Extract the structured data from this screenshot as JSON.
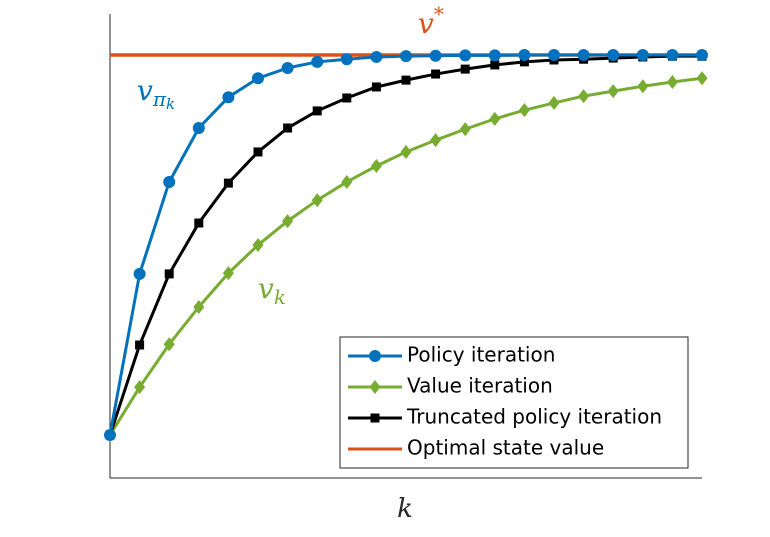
{
  "chart_data": {
    "type": "line",
    "x_label": "k",
    "x": [
      0,
      1,
      2,
      3,
      4,
      5,
      6,
      7,
      8,
      9,
      10,
      11,
      12,
      13,
      14,
      15,
      16,
      17,
      18,
      19,
      20
    ],
    "xlim": [
      0,
      20
    ],
    "ylim": [
      -0.113,
      1.108
    ],
    "legend_position": "lower right",
    "series": [
      {
        "name": "Policy iteration",
        "color": "#0072bd",
        "marker": "circle",
        "values": [
          0,
          0.424,
          0.666,
          0.808,
          0.889,
          0.939,
          0.966,
          0.982,
          0.989,
          0.995,
          0.997,
          0.998,
          0.999,
          0.999,
          1,
          1,
          1,
          1,
          1,
          1,
          1
        ]
      },
      {
        "name": "Value iteration",
        "color": "#77ac30",
        "marker": "diamond",
        "values": [
          0,
          0.126,
          0.239,
          0.337,
          0.426,
          0.5,
          0.563,
          0.618,
          0.666,
          0.708,
          0.745,
          0.776,
          0.805,
          0.832,
          0.855,
          0.874,
          0.892,
          0.905,
          0.918,
          0.929,
          0.939
        ]
      },
      {
        "name": "Truncated policy iteration",
        "color": "#000000",
        "marker": "square",
        "values": [
          0,
          0.237,
          0.424,
          0.558,
          0.663,
          0.745,
          0.808,
          0.853,
          0.887,
          0.916,
          0.934,
          0.95,
          0.963,
          0.974,
          0.982,
          0.987,
          0.989,
          0.992,
          0.995,
          0.997,
          0.997
        ]
      },
      {
        "name": "Optimal state value",
        "color": "#d95319",
        "marker": "none",
        "values": [
          1,
          1,
          1,
          1,
          1,
          1,
          1,
          1,
          1,
          1,
          1,
          1,
          1,
          1,
          1,
          1,
          1,
          1,
          1,
          1,
          1
        ]
      }
    ],
    "annotations": [
      {
        "base": "v",
        "sup": "*",
        "color": "#d95319"
      },
      {
        "base": "v",
        "sub": "π",
        "subsub": "k",
        "color": "#0072bd"
      },
      {
        "base": "v",
        "sub": "k",
        "color": "#77ac30"
      }
    ]
  }
}
